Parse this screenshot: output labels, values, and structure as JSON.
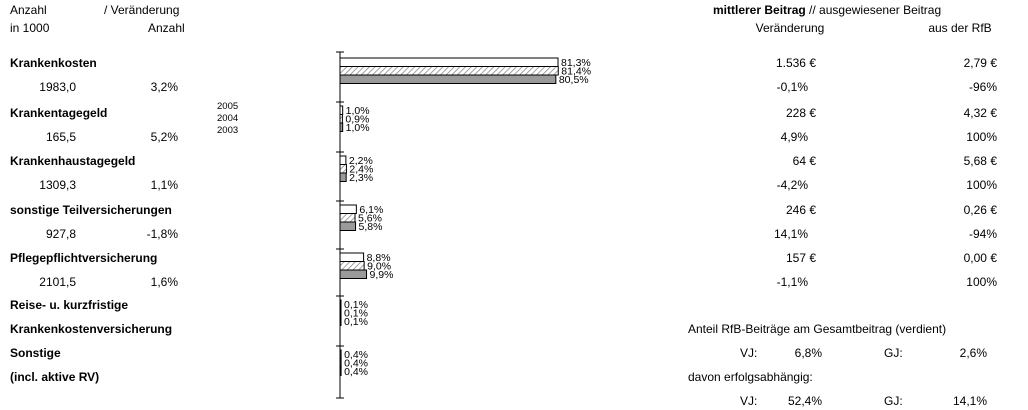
{
  "header": {
    "left_line1": "Anzahl",
    "left_line1b": "/ Veränderung",
    "left_line2": "in 1000",
    "left_line2b": "Anzahl",
    "right_title_bold": "mittlerer Beitrag",
    "right_title_rest": "// ausgewiesener Beitrag",
    "right_col1": "Veränderung",
    "right_col2": "aus der RfB"
  },
  "legend_years": [
    "2005",
    "2004",
    "2003"
  ],
  "categories": [
    {
      "name": "Krankenkosten",
      "count": "1983,0",
      "change": "3,2%",
      "avg": "1.536 €",
      "avg_change": "-0,1%",
      "rfb": "2,79 €",
      "rfb_change": "-96%"
    },
    {
      "name": "Krankentagegeld",
      "count": "165,5",
      "change": "5,2%",
      "avg": "228 €",
      "avg_change": "4,9%",
      "rfb": "4,32 €",
      "rfb_change": "100%"
    },
    {
      "name": "Krankenhaustagegeld",
      "count": "1309,3",
      "change": "1,1%",
      "avg": "64 €",
      "avg_change": "-4,2%",
      "rfb": "5,68 €",
      "rfb_change": "100%"
    },
    {
      "name": "sonstige Teilversicherungen",
      "count": "927,8",
      "change": "-1,8%",
      "avg": "246 €",
      "avg_change": "14,1%",
      "rfb": "0,26 €",
      "rfb_change": "-94%"
    },
    {
      "name": "Pflegepflichtversicherung",
      "count": "2101,5",
      "change": "1,6%",
      "avg": "157 €",
      "avg_change": "-1,1%",
      "rfb": "0,00 €",
      "rfb_change": "100%"
    },
    {
      "name_line1": "Reise- u. kurzfristige",
      "name_line2": "Krankenkostenversicherung"
    },
    {
      "name_line1": "Sonstige",
      "name_line2": "(incl. aktive RV)"
    }
  ],
  "footer": {
    "anteil_label": "Anteil RfB-Beiträge am Gesamtbeitrag (verdient)",
    "vj_label": "VJ:",
    "vj_value": "6,8%",
    "gj_label": "GJ:",
    "gj_value": "2,6%",
    "davon_label": "davon erfolgsabhängig:",
    "vj_value2": "52,4%",
    "gj_value2": "14,1%"
  },
  "chart_data": {
    "type": "bar",
    "orientation": "horizontal",
    "categories": [
      "Krankenkosten",
      "Krankentagegeld",
      "Krankenhaustagegeld",
      "sonstige Teilversicherungen",
      "Pflegepflichtversicherung",
      "Reise- u. kurzfristige Krankenkostenversicherung",
      "Sonstige (incl. aktive RV)"
    ],
    "series": [
      {
        "name": "2005",
        "values": [
          81.3,
          1.0,
          2.2,
          6.1,
          8.8,
          0.1,
          0.4
        ],
        "labels": [
          "81,3%",
          "1,0%",
          "2,2%",
          "6,1%",
          "8,8%",
          "0,1%",
          "0,4%"
        ],
        "fill": "#ffffff"
      },
      {
        "name": "2004",
        "values": [
          81.4,
          0.9,
          2.4,
          5.6,
          9.0,
          0.1,
          0.4
        ],
        "labels": [
          "81,4%",
          "0,9%",
          "2,4%",
          "5,6%",
          "9,0%",
          "0,1%",
          "0,4%"
        ],
        "fill": "hatch"
      },
      {
        "name": "2003",
        "values": [
          80.5,
          1.0,
          2.3,
          5.8,
          9.9,
          0.1,
          0.4
        ],
        "labels": [
          "80,5%",
          "1,0%",
          "2,3%",
          "5,8%",
          "9,9%",
          "0,1%",
          "0,4%"
        ],
        "fill": "#9a9a9a"
      }
    ],
    "xlim": [
      0,
      100
    ],
    "grid": false,
    "colors": {
      "series_2005": "#ffffff",
      "series_2004": "hatch",
      "series_2003": "#9a9a9a",
      "stroke": "#000000"
    }
  }
}
